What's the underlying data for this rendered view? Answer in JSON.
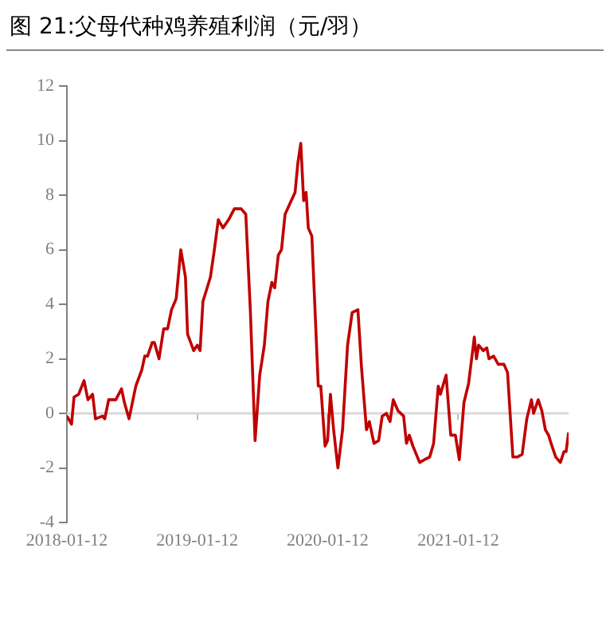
{
  "chart_data": {
    "type": "line",
    "title": "图 21:父母代种鸡养殖利润（元/羽）",
    "x": [
      "2018-01-12",
      "2018-01-25",
      "2018-02-01",
      "2018-02-14",
      "2018-03-01",
      "2018-03-12",
      "2018-03-25",
      "2018-04-02",
      "2018-04-22",
      "2018-04-28",
      "2018-05-09",
      "2018-05-29",
      "2018-06-14",
      "2018-06-22",
      "2018-07-05",
      "2018-07-24",
      "2018-08-10",
      "2018-08-18",
      "2018-08-26",
      "2018-09-08",
      "2018-09-14",
      "2018-09-27",
      "2018-10-10",
      "2018-10-21",
      "2018-11-01",
      "2018-11-14",
      "2018-11-27",
      "2018-12-10",
      "2018-12-16",
      "2019-01-02",
      "2019-01-12",
      "2019-01-20",
      "2019-01-28",
      "2019-02-18",
      "2019-03-01",
      "2019-03-12",
      "2019-03-25",
      "2019-04-10",
      "2019-04-26",
      "2019-05-15",
      "2019-05-28",
      "2019-06-10",
      "2019-06-23",
      "2019-07-06",
      "2019-07-19",
      "2019-07-29",
      "2019-08-09",
      "2019-08-17",
      "2019-08-27",
      "2019-09-05",
      "2019-09-15",
      "2019-10-13",
      "2019-10-21",
      "2019-10-29",
      "2019-11-06",
      "2019-11-13",
      "2019-11-19",
      "2019-11-29",
      "2019-12-17",
      "2019-12-24",
      "2020-01-05",
      "2020-01-12",
      "2020-01-20",
      "2020-01-29",
      "2020-02-10",
      "2020-02-23",
      "2020-03-08",
      "2020-03-21",
      "2020-04-06",
      "2020-04-16",
      "2020-04-30",
      "2020-05-08",
      "2020-05-21",
      "2020-06-03",
      "2020-06-13",
      "2020-06-25",
      "2020-07-05",
      "2020-07-14",
      "2020-07-27",
      "2020-08-12",
      "2020-08-20",
      "2020-08-28",
      "2020-09-07",
      "2020-09-26",
      "2020-10-09",
      "2020-10-24",
      "2020-11-04",
      "2020-11-17",
      "2020-11-23",
      "2020-12-09",
      "2020-12-22",
      "2021-01-04",
      "2021-01-15",
      "2021-01-28",
      "2021-02-10",
      "2021-02-26",
      "2021-03-04",
      "2021-03-10",
      "2021-03-23",
      "2021-04-02",
      "2021-04-08",
      "2021-04-21",
      "2021-05-04",
      "2021-05-20",
      "2021-05-30",
      "2021-06-14",
      "2021-06-27",
      "2021-07-10",
      "2021-07-23",
      "2021-08-05",
      "2021-08-11",
      "2021-08-24",
      "2021-09-03",
      "2021-09-13",
      "2021-09-22",
      "2021-09-29",
      "2021-10-12",
      "2021-10-25",
      "2021-11-04",
      "2021-11-10",
      "2021-11-17"
    ],
    "series": [
      {
        "color": "#c00000",
        "values": [
          -0.1,
          -0.4,
          0.6,
          0.7,
          1.2,
          0.5,
          0.7,
          -0.2,
          -0.1,
          -0.2,
          0.5,
          0.5,
          0.9,
          0.4,
          -0.2,
          1.0,
          1.6,
          2.1,
          2.1,
          2.6,
          2.6,
          2.0,
          3.1,
          3.1,
          3.8,
          4.2,
          6.0,
          5.0,
          2.9,
          2.3,
          2.5,
          2.3,
          4.1,
          5.0,
          6.0,
          7.1,
          6.8,
          7.1,
          7.5,
          7.5,
          7.3,
          3.7,
          -1.0,
          1.4,
          2.5,
          4.1,
          4.8,
          4.6,
          5.8,
          6.0,
          7.3,
          8.1,
          9.2,
          9.9,
          7.8,
          8.1,
          6.8,
          6.5,
          1.0,
          1.0,
          -1.2,
          -1.0,
          0.7,
          -0.6,
          -2.0,
          -0.6,
          2.5,
          3.7,
          3.8,
          1.7,
          -0.6,
          -0.3,
          -1.1,
          -1.0,
          -0.1,
          0.0,
          -0.3,
          0.5,
          0.1,
          -0.1,
          -1.1,
          -0.8,
          -1.2,
          -1.8,
          -1.7,
          -1.6,
          -1.1,
          1.0,
          0.7,
          1.4,
          -0.8,
          -0.8,
          -1.7,
          0.4,
          1.1,
          2.8,
          2.0,
          2.5,
          2.3,
          2.4,
          2.0,
          2.1,
          1.8,
          1.8,
          1.5,
          -1.6,
          -1.6,
          -1.5,
          -0.2,
          0.5,
          0.0,
          0.5,
          0.1,
          -0.6,
          -0.8,
          -1.1,
          -1.6,
          -1.8,
          -1.4,
          -1.4,
          -0.7
        ]
      }
    ],
    "xlim": [
      "2018-01-12",
      "2021-11-17"
    ],
    "xticks": [
      "2018-01-12",
      "2019-01-12",
      "2020-01-12",
      "2021-01-12"
    ],
    "ylim": [
      -4,
      12
    ],
    "yticks": [
      -4,
      -2,
      0,
      2,
      4,
      6,
      8,
      10,
      12
    ],
    "ref_lines": [
      {
        "axis": "y",
        "value": 0,
        "color": "#d9d9d9"
      }
    ],
    "grid": false,
    "legend": false,
    "marker": "none",
    "line_style": "solid"
  }
}
